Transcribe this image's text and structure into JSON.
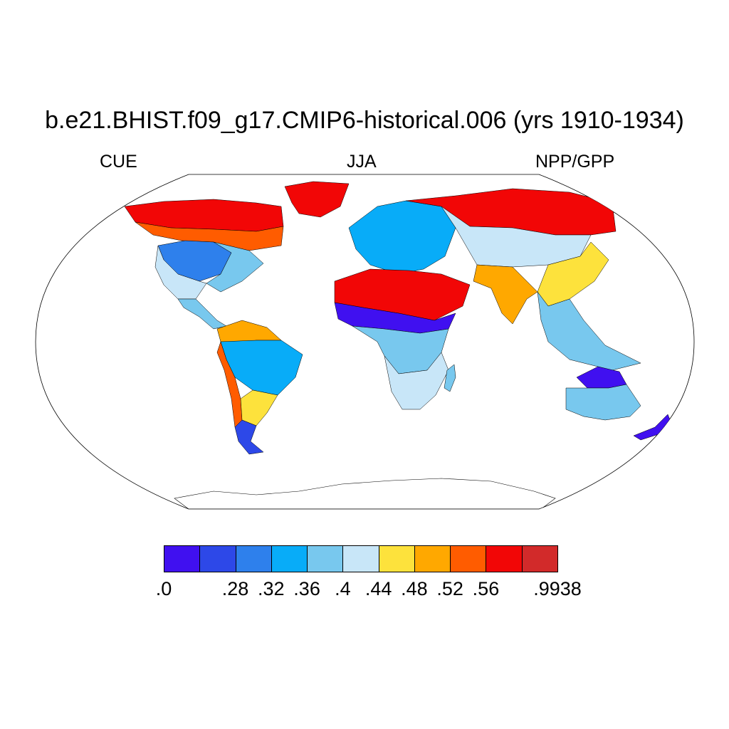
{
  "title": "b.e21.BHIST.f09_g17.CMIP6-historical.006 (yrs 1910-1934)",
  "subtitle_left": "CUE",
  "subtitle_center": "JJA",
  "subtitle_right": "NPP/GPP",
  "colorbar": {
    "colors": [
      "#4010f0",
      "#2d48e8",
      "#2e80ec",
      "#08acf8",
      "#78c8ee",
      "#c8e6f8",
      "#fde23c",
      "#ffa800",
      "#ff5c00",
      "#f20606",
      "#d22a2a"
    ],
    "labels": [
      ".0",
      ".28",
      ".32",
      ".36",
      ".4",
      ".44",
      ".48",
      ".52",
      ".56",
      ".9938"
    ],
    "label_boundary_index": [
      0,
      2,
      3,
      4,
      5,
      6,
      7,
      8,
      9,
      11
    ]
  },
  "ocean_color": "#ffffff",
  "regions": [
    {
      "name": "north-america-tundra",
      "level": 9
    },
    {
      "name": "north-america-boreal",
      "level": 8
    },
    {
      "name": "north-america-interior",
      "level": 2
    },
    {
      "name": "north-america-east",
      "level": 4
    },
    {
      "name": "north-america-west",
      "level": 5
    },
    {
      "name": "central-america",
      "level": 4
    },
    {
      "name": "south-america-north",
      "level": 7
    },
    {
      "name": "amazon",
      "level": 3
    },
    {
      "name": "andes",
      "level": 8
    },
    {
      "name": "south-america-south",
      "level": 6
    },
    {
      "name": "patagonia",
      "level": 1
    },
    {
      "name": "greenland-coast",
      "level": 9
    },
    {
      "name": "europe",
      "level": 3
    },
    {
      "name": "siberia",
      "level": 9
    },
    {
      "name": "central-asia",
      "level": 5
    },
    {
      "name": "east-asia",
      "level": 6
    },
    {
      "name": "south-asia",
      "level": 7
    },
    {
      "name": "south-east-asia",
      "level": 4
    },
    {
      "name": "sahara-rim",
      "level": 9
    },
    {
      "name": "sahel",
      "level": 0
    },
    {
      "name": "tropical-africa",
      "level": 4
    },
    {
      "name": "southern-africa",
      "level": 5
    },
    {
      "name": "madagascar",
      "level": 4
    },
    {
      "name": "australia",
      "level": 4
    },
    {
      "name": "australia-north",
      "level": 0
    },
    {
      "name": "new-zealand",
      "level": 0
    }
  ]
}
